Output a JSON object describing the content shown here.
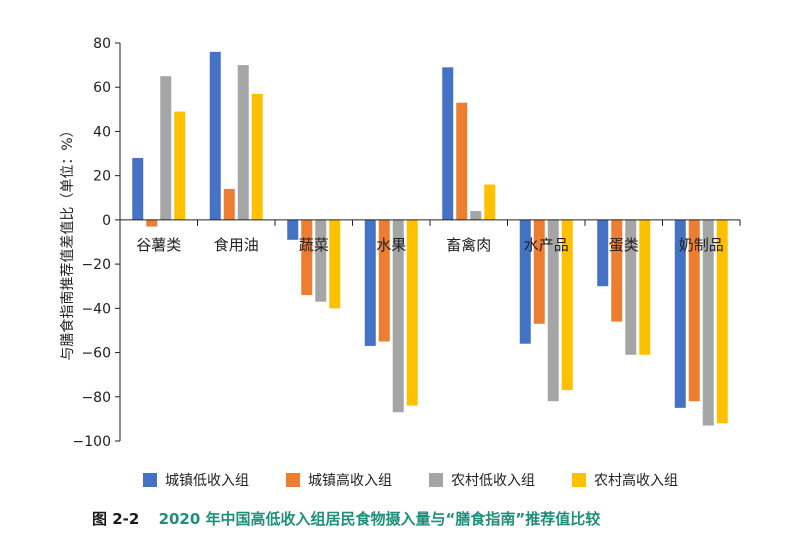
{
  "chart_data": {
    "type": "bar",
    "title": "",
    "ylabel": "与膳食指南推荐值差值比（单位：%）",
    "xlabel": "",
    "ylim": [
      -100,
      80
    ],
    "yticks": [
      80,
      60,
      40,
      20,
      0,
      -20,
      -40,
      -60,
      -80,
      -100
    ],
    "ytick_labels": [
      "80",
      "60",
      "40",
      "20",
      "0",
      "−20",
      "−40",
      "−60",
      "−80",
      "−100"
    ],
    "categories": [
      "谷薯类",
      "食用油",
      "蔬菜",
      "水果",
      "畜禽肉",
      "水产品",
      "蛋类",
      "奶制品"
    ],
    "series": [
      {
        "name": "城镇低收入组",
        "color": "#4472c4",
        "values": [
          28,
          76,
          -9,
          -57,
          69,
          -56,
          -30,
          -85
        ]
      },
      {
        "name": "城镇高收入组",
        "color": "#ed7d31",
        "values": [
          -3,
          14,
          -34,
          -55,
          53,
          -47,
          -46,
          -82
        ]
      },
      {
        "name": "农村低收入组",
        "color": "#a5a5a5",
        "values": [
          65,
          70,
          -37,
          -87,
          4,
          -82,
          -61,
          -93
        ]
      },
      {
        "name": "农村高收入组",
        "color": "#ffc000",
        "values": [
          49,
          57,
          -40,
          -84,
          16,
          -77,
          -61,
          -92
        ]
      }
    ],
    "grid": false,
    "legend_position": "bottom"
  },
  "caption": {
    "number": "图 2-2",
    "title": "2020 年中国高低收入组居民食物摄入量与“膳食指南”推荐值比较"
  }
}
